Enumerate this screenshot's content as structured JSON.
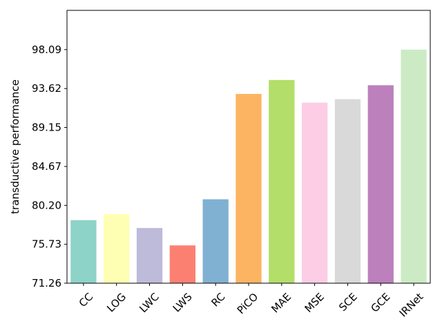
{
  "chart_data": {
    "type": "bar",
    "title": "",
    "xlabel": "",
    "ylabel": "transductive performance",
    "categories": [
      "CC",
      "LOG",
      "LWC",
      "LWS",
      "RC",
      "PiCO",
      "MAE",
      "MSE",
      "SCE",
      "GCE",
      "IRNet"
    ],
    "values": [
      78.5,
      79.2,
      77.6,
      75.6,
      80.9,
      93.0,
      94.6,
      92.0,
      92.4,
      94.0,
      98.09
    ],
    "colors": [
      "#8dd3c7",
      "#ffffb3",
      "#bebada",
      "#fb8072",
      "#80b1d3",
      "#fdb462",
      "#b3de69",
      "#fccde5",
      "#d9d9d9",
      "#bc80bd",
      "#ccebc5"
    ],
    "yticks": [
      "71.26",
      "75.73",
      "80.20",
      "84.67",
      "89.15",
      "93.62",
      "98.09"
    ],
    "ylim": [
      71.26,
      102.6
    ],
    "grid": false,
    "legend": "none"
  }
}
